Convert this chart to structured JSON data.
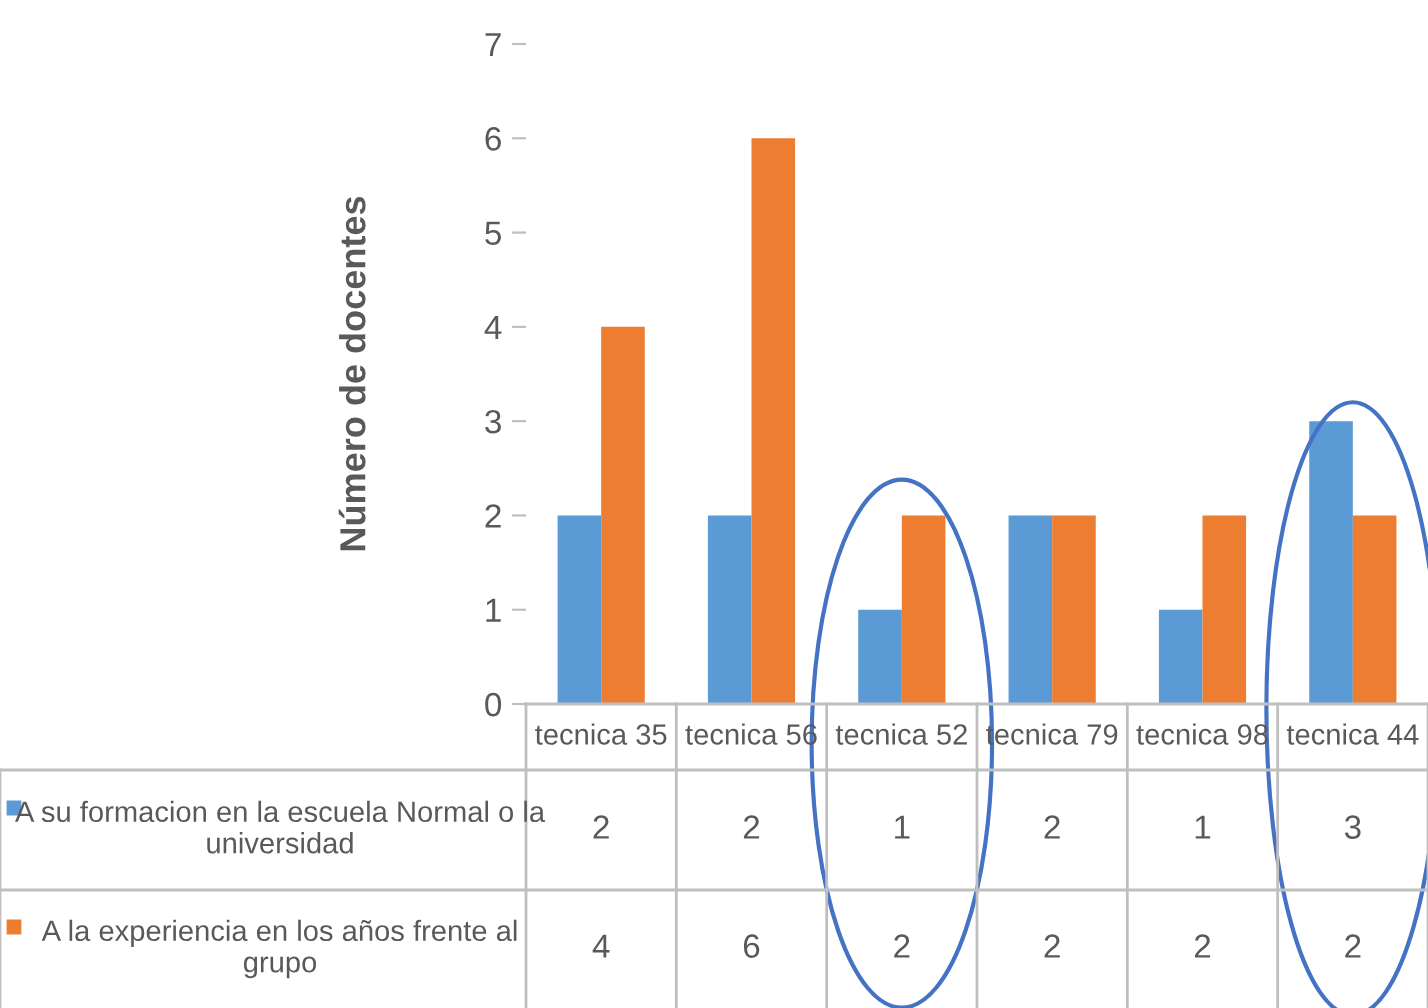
{
  "chart_data": {
    "type": "bar",
    "ylabel": "Número de docentes",
    "categories": [
      "tecnica 35",
      "tecnica 56",
      "tecnica 52",
      "tecnica 79",
      "tecnica 98",
      "tecnica 44"
    ],
    "series": [
      {
        "name": "A su formacion en la escuela Normal o la universidad",
        "color": "#5b9bd5",
        "values": [
          2,
          2,
          1,
          2,
          1,
          3
        ]
      },
      {
        "name": "A la experiencia en los años frente al grupo",
        "color": "#ed7d31",
        "values": [
          4,
          6,
          2,
          2,
          2,
          2
        ]
      }
    ],
    "ylim": [
      0,
      7
    ],
    "yticks": [
      0,
      1,
      2,
      3,
      4,
      5,
      6,
      7
    ],
    "grid": false,
    "legend": "bottom",
    "data_labels": true
  }
}
